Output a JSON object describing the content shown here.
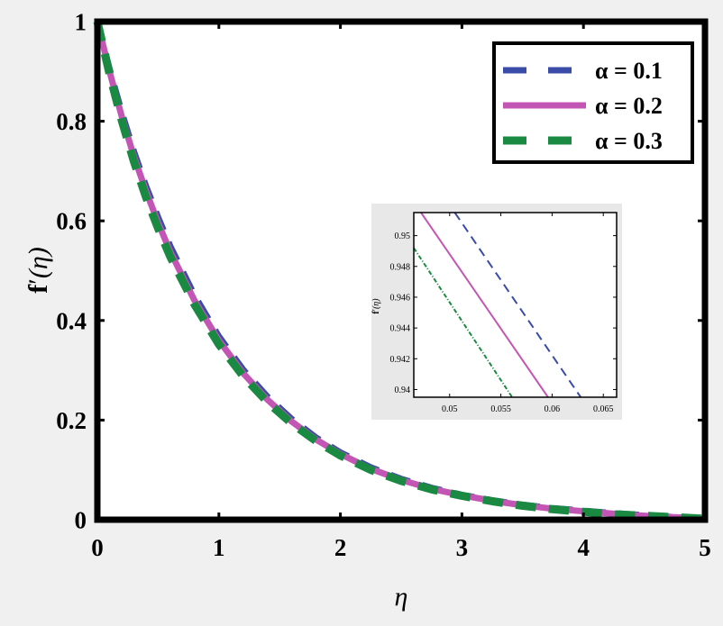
{
  "chart_data": [
    {
      "type": "line",
      "xlabel": "η",
      "ylabel_main": "f",
      "ylabel_prime": "′",
      "ylabel_arg": "(η)",
      "xlim": [
        0,
        5
      ],
      "ylim": [
        0,
        1
      ],
      "xticks": [
        "0",
        "1",
        "2",
        "3",
        "4",
        "5"
      ],
      "yticks": [
        "0",
        "0.2",
        "0.4",
        "0.6",
        "0.8",
        "1"
      ],
      "legend_position": "top-right",
      "series": [
        {
          "name": "α = 0.1",
          "color": "#3b4ba8",
          "dash": "dash",
          "x": [
            0,
            0.1,
            0.2,
            0.3,
            0.4,
            0.5,
            0.6,
            0.8,
            1.0,
            1.2,
            1.4,
            1.6,
            1.8,
            2.0,
            2.25,
            2.5,
            2.75,
            3.0,
            3.25,
            3.5,
            3.75,
            4.0,
            4.25,
            4.5,
            4.75,
            5.0
          ],
          "y": [
            1,
            0.905,
            0.818,
            0.74,
            0.67,
            0.607,
            0.549,
            0.45,
            0.368,
            0.301,
            0.247,
            0.202,
            0.165,
            0.135,
            0.105,
            0.082,
            0.064,
            0.05,
            0.039,
            0.03,
            0.023,
            0.018,
            0.013,
            0.009,
            0.005,
            0.002
          ]
        },
        {
          "name": "α = 0.2",
          "color": "#c356b5",
          "dash": "solid",
          "x": [
            0,
            0.1,
            0.2,
            0.3,
            0.4,
            0.5,
            0.6,
            0.8,
            1.0,
            1.2,
            1.4,
            1.6,
            1.8,
            2.0,
            2.25,
            2.5,
            2.75,
            3.0,
            3.25,
            3.5,
            3.75,
            4.0,
            4.25,
            4.5,
            4.75,
            5.0
          ],
          "y": [
            1,
            0.9,
            0.81,
            0.73,
            0.66,
            0.596,
            0.538,
            0.44,
            0.36,
            0.294,
            0.241,
            0.197,
            0.161,
            0.132,
            0.102,
            0.08,
            0.062,
            0.049,
            0.038,
            0.029,
            0.022,
            0.017,
            0.012,
            0.008,
            0.005,
            0.002
          ]
        },
        {
          "name": "α = 0.3",
          "color": "#1a8a43",
          "dash": "dash",
          "x": [
            0,
            0.1,
            0.2,
            0.3,
            0.4,
            0.5,
            0.6,
            0.8,
            1.0,
            1.2,
            1.4,
            1.6,
            1.8,
            2.0,
            2.25,
            2.5,
            2.75,
            3.0,
            3.25,
            3.5,
            3.75,
            4.0,
            4.25,
            4.5,
            4.75,
            5.0
          ],
          "y": [
            1,
            0.895,
            0.802,
            0.72,
            0.648,
            0.585,
            0.528,
            0.432,
            0.352,
            0.288,
            0.236,
            0.193,
            0.158,
            0.129,
            0.1,
            0.078,
            0.061,
            0.048,
            0.037,
            0.028,
            0.021,
            0.016,
            0.011,
            0.008,
            0.005,
            0.002
          ]
        }
      ]
    },
    {
      "type": "line",
      "ylabel_main": "f",
      "ylabel_prime": "′",
      "ylabel_arg": "(η)",
      "xlim": [
        0.0465,
        0.0663
      ],
      "ylim": [
        0.9395,
        0.9515
      ],
      "xticks": [
        "0.05",
        "0.055",
        "0.06",
        "0.065"
      ],
      "yticks": [
        "0.94",
        "0.942",
        "0.944",
        "0.946",
        "0.948",
        "0.95"
      ],
      "series": [
        {
          "name": "α = 0.1",
          "color": "#3b4ba8",
          "dash": "dash",
          "x": [
            0.0505,
            0.0628
          ],
          "y": [
            0.9515,
            0.9395
          ]
        },
        {
          "name": "α = 0.2",
          "color": "#c356b5",
          "dash": "solid",
          "x": [
            0.0472,
            0.0596
          ],
          "y": [
            0.9515,
            0.9395
          ]
        },
        {
          "name": "α = 0.3",
          "color": "#1a8a43",
          "dash": "dashdot",
          "x": [
            0.0465,
            0.0561
          ],
          "y": [
            0.9492,
            0.9395
          ]
        }
      ]
    }
  ]
}
